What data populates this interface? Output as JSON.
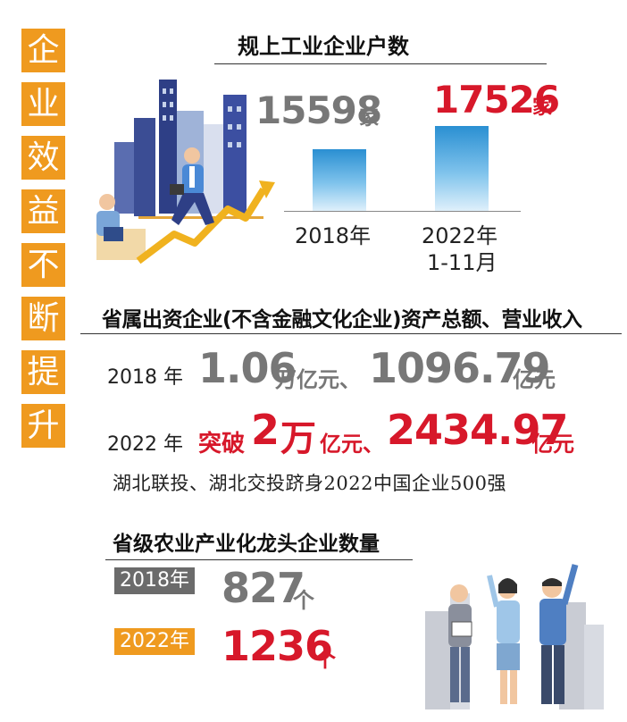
{
  "side_title": [
    "企",
    "业",
    "效",
    "益",
    "不",
    "断",
    "提",
    "升"
  ],
  "section1": {
    "title": "规上工业企业户数",
    "chart_data": {
      "type": "bar",
      "categories": [
        "2018年",
        "2022年\n1-11月"
      ],
      "values": [
        15598,
        17526
      ],
      "unit": "家"
    },
    "value_2018": "15598",
    "value_2022": "17526",
    "unit": "家",
    "label_2018": "2018年",
    "label_2022_line1": "2022年",
    "label_2022_line2": "1-11月"
  },
  "section2": {
    "title": "省属出资企业(不含金融文化企业)资产总额、营业收入",
    "row1": {
      "year": "2018 年",
      "v1": "1.06",
      "u1": "万亿元、",
      "v2": "1096.79",
      "u2": "亿元"
    },
    "row2": {
      "year": "2022 年",
      "prefix": "突破",
      "v1": "2",
      "u1": "万",
      "u1b": "亿元、",
      "v2": "2434.97",
      "u2": "亿元"
    },
    "note": "湖北联投、湖北交投跻身2022中国企业500强"
  },
  "section3": {
    "title": "省级农业产业化龙头企业数量",
    "row1": {
      "year": "2018年",
      "value": "827",
      "unit": "个"
    },
    "row2": {
      "year": "2022年",
      "value": "1236",
      "unit": "个"
    }
  },
  "colors": {
    "orange": "#ef9a1f",
    "red": "#d7182a",
    "grey_text": "#777777",
    "grey_tag": "#6b6b6b",
    "bar_blue": "#2a8fd2"
  }
}
